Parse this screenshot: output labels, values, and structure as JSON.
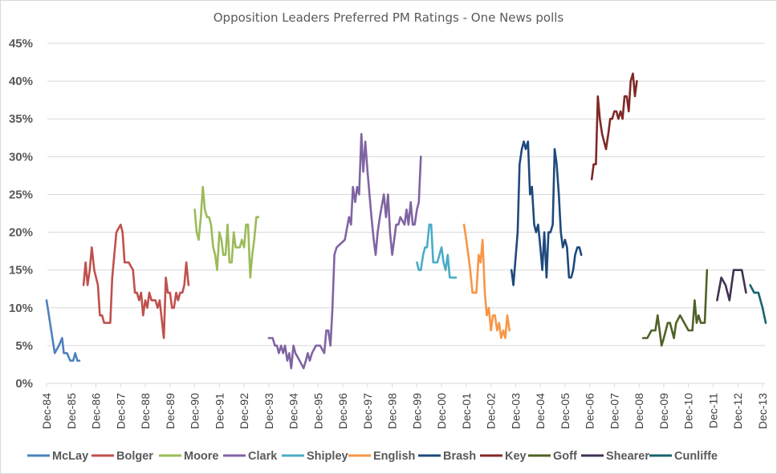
{
  "chart_data": {
    "type": "line",
    "title": "Opposition Leaders Preferred PM Ratings - One News polls",
    "xlabel": "",
    "ylabel": "",
    "ylim": [
      0,
      45
    ],
    "xlim": [
      1984.92,
      2014.05
    ],
    "grid": true,
    "legend_position": "bottom",
    "y_ticks": [
      "0%",
      "5%",
      "10%",
      "15%",
      "20%",
      "25%",
      "30%",
      "35%",
      "40%",
      "45%"
    ],
    "y_tick_values": [
      0,
      5,
      10,
      15,
      20,
      25,
      30,
      35,
      40,
      45
    ],
    "x_ticks": [
      "Dec-84",
      "Dec-85",
      "Dec-86",
      "Dec-87",
      "Dec-88",
      "Dec-89",
      "Dec-90",
      "Dec-91",
      "Dec-92",
      "Dec-93",
      "Dec-94",
      "Dec-95",
      "Dec-96",
      "Dec-97",
      "Dec-98",
      "Dec-99",
      "Dec-00",
      "Dec-01",
      "Dec-02",
      "Dec-03",
      "Dec-04",
      "Dec-05",
      "Dec-06",
      "Dec-07",
      "Dec-08",
      "Dec-09",
      "Dec-10",
      "Dec-11",
      "Dec-12",
      "Dec-13"
    ],
    "x_tick_values": [
      1984.92,
      1985.92,
      1986.92,
      1987.92,
      1988.92,
      1989.92,
      1990.92,
      1991.92,
      1992.92,
      1993.92,
      1994.92,
      1995.92,
      1996.92,
      1997.92,
      1998.92,
      1999.92,
      2000.92,
      2001.92,
      2002.92,
      2003.92,
      2004.92,
      2005.92,
      2006.92,
      2007.92,
      2008.92,
      2009.92,
      2010.92,
      2011.92,
      2012.92,
      2013.92
    ],
    "series": [
      {
        "name": "McLay",
        "color": "#4f81bd",
        "x": [
          1984.92,
          1985.25,
          1985.42,
          1985.55,
          1985.62,
          1985.75,
          1985.88,
          1986.0,
          1986.08,
          1986.17,
          1986.25
        ],
        "y": [
          11,
          4,
          5,
          6,
          4,
          4,
          3,
          3,
          4,
          3,
          3
        ]
      },
      {
        "name": "Bolger",
        "color": "#c0504d",
        "x": [
          1986.42,
          1986.5,
          1986.58,
          1986.67,
          1986.75,
          1986.85,
          1987.0,
          1987.08,
          1987.17,
          1987.25,
          1987.5,
          1987.58,
          1987.75,
          1987.92,
          1988.0,
          1988.08,
          1988.25,
          1988.42,
          1988.5,
          1988.58,
          1988.67,
          1988.75,
          1988.83,
          1988.92,
          1989.0,
          1989.08,
          1989.17,
          1989.25,
          1989.33,
          1989.42,
          1989.5,
          1989.67,
          1989.75,
          1989.83,
          1989.92,
          1990.0,
          1990.08,
          1990.17,
          1990.25,
          1990.33,
          1990.42,
          1990.5,
          1990.58,
          1990.67,
          1990.75,
          1990.83,
          1990.92,
          1991.0,
          1991.08
        ],
        "y": [
          13,
          16,
          13,
          15,
          18,
          15,
          13,
          9,
          9,
          8,
          8,
          14,
          20,
          21,
          20,
          16,
          16,
          15,
          12,
          12,
          11,
          12,
          9,
          11,
          10,
          12,
          11,
          11,
          11,
          10,
          11,
          6,
          14,
          12,
          12,
          10,
          10,
          12,
          11,
          12,
          12,
          13,
          16,
          13,
          null,
          null,
          null,
          null,
          null
        ]
      },
      {
        "name": "Moore",
        "color": "#9bbb59",
        "x": [
          1990.92,
          1991.0,
          1991.08,
          1991.17,
          1991.25,
          1991.33,
          1991.42,
          1991.5,
          1991.58,
          1991.67,
          1991.75,
          1991.83,
          1991.92,
          1992.0,
          1992.08,
          1992.17,
          1992.25,
          1992.33,
          1992.42,
          1992.5,
          1992.58,
          1992.67,
          1992.75,
          1992.83,
          1992.92,
          1993.0,
          1993.08,
          1993.17,
          1993.25,
          1993.33,
          1993.42,
          1993.5,
          1993.58
        ],
        "y": [
          23,
          20,
          19,
          22,
          26,
          23,
          22,
          22,
          21,
          18,
          17,
          15,
          20,
          19,
          17,
          17,
          21,
          16,
          16,
          20,
          18,
          18,
          18,
          19,
          18,
          21,
          21,
          14,
          17,
          19,
          22,
          22,
          null
        ]
      },
      {
        "name": "Clark",
        "color": "#8064a2",
        "x": [
          1993.92,
          1994.0,
          1994.08,
          1994.17,
          1994.25,
          1994.33,
          1994.42,
          1994.5,
          1994.58,
          1994.67,
          1994.75,
          1994.83,
          1994.92,
          1995.0,
          1995.17,
          1995.33,
          1995.42,
          1995.5,
          1995.58,
          1995.67,
          1995.83,
          1996.0,
          1996.17,
          1996.25,
          1996.33,
          1996.42,
          1996.5,
          1996.58,
          1996.67,
          1997.0,
          1997.17,
          1997.25,
          1997.33,
          1997.42,
          1997.5,
          1997.58,
          1997.67,
          1997.75,
          1997.83,
          1997.92,
          1998.0,
          1998.08,
          1998.17,
          1998.25,
          1998.33,
          1998.42,
          1998.58,
          1998.67,
          1998.75,
          1998.83,
          1998.92,
          1999.0,
          1999.08,
          1999.17,
          1999.25,
          1999.42,
          1999.5,
          1999.58,
          1999.67,
          1999.75,
          1999.83,
          1999.92,
          2000.0,
          2000.08,
          2000.17
        ],
        "y": [
          6,
          6,
          6,
          5,
          5,
          4,
          5,
          4,
          5,
          3,
          4,
          2,
          5,
          4,
          3,
          2,
          3,
          4,
          3,
          4,
          5,
          5,
          4,
          7,
          7,
          5,
          10,
          17,
          18,
          19,
          22,
          21,
          26,
          24,
          26,
          25,
          33,
          28,
          32,
          28,
          25,
          22,
          19,
          17,
          20,
          22,
          25,
          22,
          25,
          20,
          17,
          19,
          21,
          21,
          22,
          21,
          23,
          21,
          24,
          21,
          21,
          23,
          24,
          30,
          null
        ]
      },
      {
        "name": "Shipley",
        "color": "#4bacc6",
        "x": [
          1999.92,
          2000.0,
          2000.08,
          2000.17,
          2000.25,
          2000.33,
          2000.42,
          2000.5,
          2000.58,
          2000.67,
          2000.75,
          2000.83,
          2000.92,
          2001.0,
          2001.08,
          2001.17,
          2001.25,
          2001.33,
          2001.42,
          2001.5,
          2001.58
        ],
        "y": [
          16,
          15,
          15,
          17,
          18,
          18,
          21,
          21,
          16,
          16,
          16,
          17,
          18,
          16,
          15,
          17,
          14,
          14,
          14,
          14,
          null
        ]
      },
      {
        "name": "English",
        "color": "#f79646",
        "x": [
          2001.83,
          2001.92,
          2002.0,
          2002.08,
          2002.17,
          2002.25,
          2002.33,
          2002.42,
          2002.5,
          2002.58,
          2002.67,
          2002.75,
          2002.83,
          2002.92,
          2003.0,
          2003.08,
          2003.17,
          2003.25,
          2003.33,
          2003.42,
          2003.5,
          2003.58,
          2003.67
        ],
        "y": [
          21,
          19,
          17,
          15,
          12,
          12,
          12,
          17,
          16,
          19,
          12,
          9,
          10,
          7,
          9,
          9,
          7,
          8,
          6,
          7,
          6,
          9,
          7
        ]
      },
      {
        "name": "Brash",
        "color": "#1f497d",
        "x": [
          2003.75,
          2003.83,
          2004.0,
          2004.08,
          2004.17,
          2004.25,
          2004.33,
          2004.42,
          2004.5,
          2004.58,
          2004.67,
          2004.75,
          2004.83,
          2004.92,
          2005.0,
          2005.08,
          2005.17,
          2005.25,
          2005.33,
          2005.42,
          2005.5,
          2005.58,
          2005.67,
          2005.75,
          2005.83,
          2005.92,
          2006.0,
          2006.08,
          2006.17,
          2006.25,
          2006.33,
          2006.42,
          2006.5,
          2006.58,
          2006.67,
          2006.75,
          2006.83
        ],
        "y": [
          15,
          13,
          20,
          29,
          31,
          32,
          31,
          32,
          25,
          26,
          21,
          20,
          21,
          18,
          15,
          20,
          14,
          20,
          20,
          21,
          31,
          29,
          25,
          20,
          18,
          19,
          18,
          14,
          14,
          15,
          17,
          18,
          18,
          17,
          null,
          null,
          null
        ]
      },
      {
        "name": "Key",
        "color": "#7f2927",
        "x": [
          2007.0,
          2007.08,
          2007.17,
          2007.25,
          2007.33,
          2007.42,
          2007.58,
          2007.67,
          2007.75,
          2007.83,
          2007.92,
          2008.0,
          2008.08,
          2008.17,
          2008.25,
          2008.33,
          2008.42,
          2008.5,
          2008.58,
          2008.67,
          2008.75,
          2008.83,
          2008.92
        ],
        "y": [
          27,
          29,
          29,
          38,
          35,
          33,
          31,
          33,
          35,
          35,
          36,
          36,
          35,
          36,
          35,
          38,
          38,
          36,
          40,
          41,
          38,
          40,
          null
        ]
      },
      {
        "name": "Goff",
        "color": "#4f6228",
        "x": [
          2009.08,
          2009.25,
          2009.42,
          2009.58,
          2009.67,
          2009.83,
          2009.92,
          2010.08,
          2010.17,
          2010.33,
          2010.42,
          2010.58,
          2010.75,
          2010.92,
          2011.08,
          2011.17,
          2011.25,
          2011.33,
          2011.42,
          2011.5,
          2011.58,
          2011.67,
          2011.83,
          2011.92
        ],
        "y": [
          6,
          6,
          7,
          7,
          9,
          5,
          6,
          8,
          8,
          6,
          8,
          9,
          8,
          7,
          7,
          11,
          8,
          9,
          8,
          8,
          8,
          15,
          null,
          null
        ]
      },
      {
        "name": "Shearer",
        "color": "#403151",
        "x": [
          2012.08,
          2012.25,
          2012.42,
          2012.58,
          2012.75,
          2012.92,
          2013.08,
          2013.25
        ],
        "y": [
          11,
          14,
          13,
          11,
          15,
          15,
          15,
          12
        ]
      },
      {
        "name": "Cunliffe",
        "color": "#17646e",
        "x": [
          2013.42,
          2013.58,
          2013.75,
          2013.92,
          2014.05
        ],
        "y": [
          13,
          12,
          12,
          10,
          8
        ]
      }
    ]
  }
}
